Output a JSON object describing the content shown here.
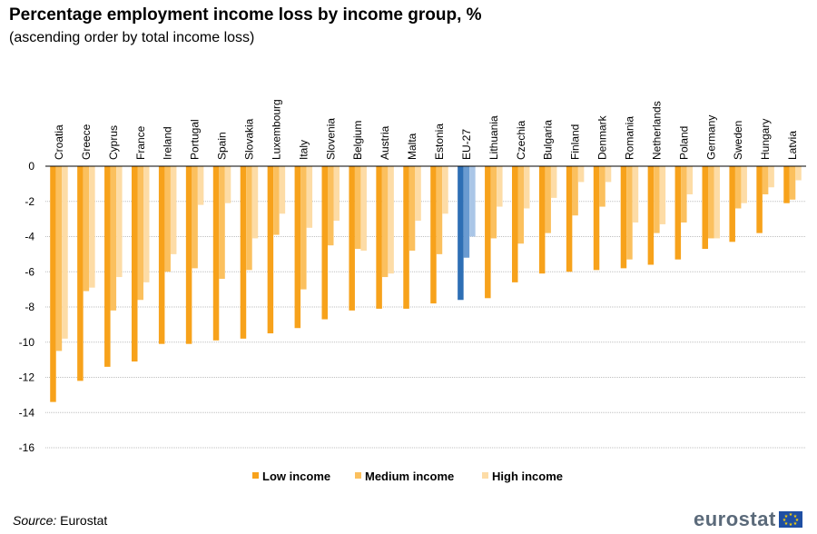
{
  "header": {
    "title": "Percentage employment income loss by income group, %",
    "subtitle": "(ascending order by total income loss)"
  },
  "footer": {
    "source_label": "Source:",
    "source_value": "Eurostat",
    "logo_text": "eurostat"
  },
  "colors": {
    "low": "#f7a21b",
    "medium": "#fbc05e",
    "high": "#fddca6",
    "eu_low": "#2e6fb5",
    "eu_medium": "#6a9bd1",
    "eu_high": "#aac6e7",
    "grid": "#bfbfbf"
  },
  "chart_data": {
    "type": "bar",
    "categories": [
      "Croatia",
      "Greece",
      "Cyprus",
      "France",
      "Ireland",
      "Portugal",
      "Spain",
      "Slovakia",
      "Luxembourg",
      "Italy",
      "Slovenia",
      "Belgium",
      "Austria",
      "Malta",
      "Estonia",
      "EU-27",
      "Lithuania",
      "Czechia",
      "Bulgaria",
      "Finland",
      "Denmark",
      "Romania",
      "Netherlands",
      "Poland",
      "Germany",
      "Sweden",
      "Hungary",
      "Latvia"
    ],
    "highlight_category": "EU-27",
    "series": [
      {
        "name": "Low income",
        "values": [
          -13.4,
          -12.2,
          -11.4,
          -11.1,
          -10.1,
          -10.1,
          -9.9,
          -9.8,
          -9.5,
          -9.2,
          -8.7,
          -8.2,
          -8.1,
          -8.1,
          -7.8,
          -7.6,
          -7.5,
          -6.6,
          -6.1,
          -6.0,
          -5.9,
          -5.8,
          -5.6,
          -5.3,
          -4.7,
          -4.3,
          -3.8,
          -2.1
        ]
      },
      {
        "name": "Medium income",
        "values": [
          -10.5,
          -7.1,
          -8.2,
          -7.6,
          -6.0,
          -5.8,
          -6.4,
          -5.9,
          -3.9,
          -7.0,
          -4.5,
          -4.7,
          -6.3,
          -4.8,
          -5.0,
          -5.2,
          -4.1,
          -4.4,
          -3.8,
          -2.8,
          -2.3,
          -5.3,
          -3.8,
          -3.2,
          -4.1,
          -2.4,
          -1.6,
          -1.9
        ]
      },
      {
        "name": "High income",
        "values": [
          -9.8,
          -6.9,
          -6.3,
          -6.6,
          -5.0,
          -2.2,
          -2.1,
          -4.1,
          -2.7,
          -3.5,
          -3.1,
          -4.8,
          -6.1,
          -3.1,
          -2.7,
          -4.0,
          -2.3,
          -2.4,
          -1.8,
          -0.9,
          -0.9,
          -3.2,
          -3.3,
          -1.6,
          -4.1,
          -2.1,
          -1.2,
          -0.8
        ]
      }
    ],
    "ylim": [
      -16,
      0
    ],
    "yticks": [
      0,
      -2,
      -4,
      -6,
      -8,
      -10,
      -12,
      -14,
      -16
    ],
    "grid": true,
    "legend_position": "bottom"
  }
}
